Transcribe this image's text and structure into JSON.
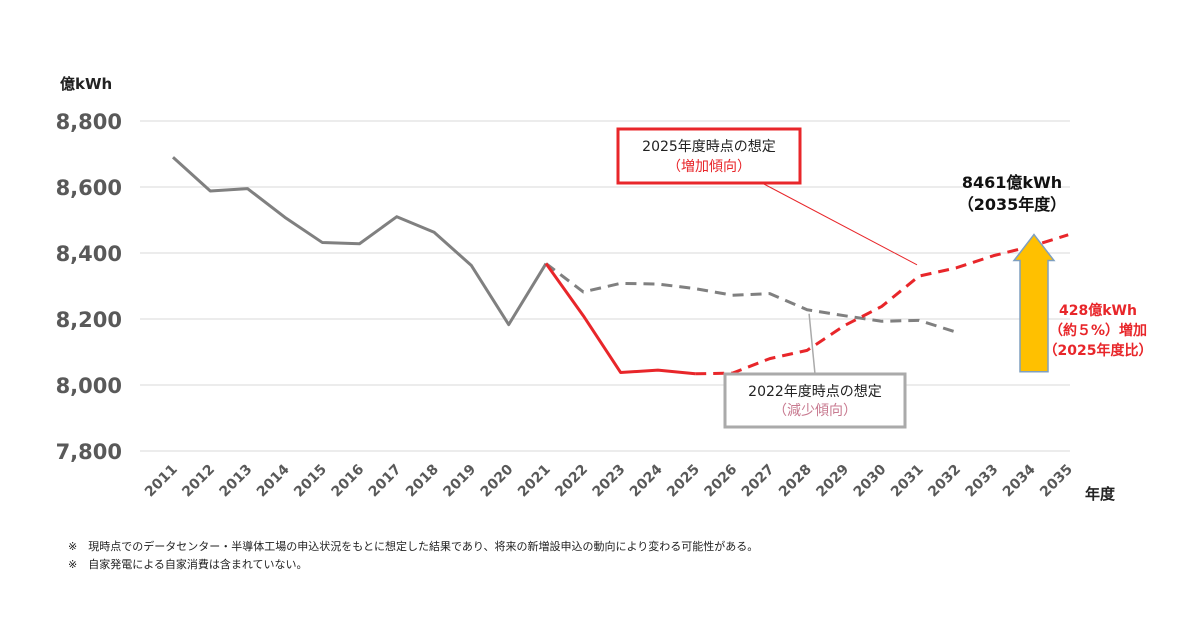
{
  "chart_data": {
    "type": "line",
    "ylabel": "億kWh",
    "xlabel": "年度",
    "ylim": [
      7800,
      8800
    ],
    "yticks": [
      7800,
      8000,
      8200,
      8400,
      8600,
      8800
    ],
    "ytick_labels": [
      "7,800",
      "8,000",
      "8,200",
      "8,400",
      "8,600",
      "8,800"
    ],
    "grid": true,
    "categories": [
      "2011",
      "2012",
      "2013",
      "2014",
      "2015",
      "2016",
      "2017",
      "2018",
      "2019",
      "2020",
      "2021",
      "2022",
      "2023",
      "2024",
      "2025",
      "2026",
      "2027",
      "2028",
      "2029",
      "2030",
      "2031",
      "2032",
      "2033",
      "2034",
      "2035"
    ],
    "series": [
      {
        "key": "actual",
        "color": "#808080",
        "dash": "solid",
        "points": [
          [
            "2011",
            8690
          ],
          [
            "2012",
            8588
          ],
          [
            "2013",
            8595
          ],
          [
            "2014",
            8508
          ],
          [
            "2015",
            8432
          ],
          [
            "2016",
            8428
          ],
          [
            "2017",
            8510
          ],
          [
            "2018",
            8463
          ],
          [
            "2019",
            8362
          ],
          [
            "2020",
            8183
          ],
          [
            "2021",
            8368
          ]
        ]
      },
      {
        "key": "forecast_2022",
        "color": "#808080",
        "dash": "dashed",
        "points": [
          [
            "2021",
            8368
          ],
          [
            "2022",
            8282
          ],
          [
            "2023",
            8308
          ],
          [
            "2024",
            8306
          ],
          [
            "2025",
            8292
          ],
          [
            "2026",
            8272
          ],
          [
            "2027",
            8277
          ],
          [
            "2028",
            8228
          ],
          [
            "2029",
            8210
          ],
          [
            "2030",
            8193
          ],
          [
            "2031",
            8196
          ],
          [
            "2032",
            8160
          ]
        ]
      },
      {
        "key": "forecast_2025_actual",
        "color": "#e8262a",
        "dash": "solid",
        "points": [
          [
            "2021",
            8368
          ],
          [
            "2022",
            8210
          ],
          [
            "2023",
            8038
          ],
          [
            "2024",
            8045
          ],
          [
            "2025",
            8034
          ]
        ]
      },
      {
        "key": "forecast_2025",
        "color": "#e8262a",
        "dash": "dashed",
        "points": [
          [
            "2025",
            8034
          ],
          [
            "2026",
            8036
          ],
          [
            "2027",
            8080
          ],
          [
            "2028",
            8105
          ],
          [
            "2029",
            8180
          ],
          [
            "2030",
            8238
          ],
          [
            "2031",
            8330
          ],
          [
            "2032",
            8355
          ],
          [
            "2033",
            8392
          ],
          [
            "2034",
            8420
          ],
          [
            "2035",
            8455
          ]
        ]
      }
    ],
    "annotations": {
      "box_2025": {
        "title": "2025年度時点の想定",
        "subtitle": "（増加傾向）",
        "border_color": "#e8262a",
        "target": [
          "2031",
          8340
        ]
      },
      "box_2022": {
        "title": "2022年度時点の想定",
        "subtitle": "（減少傾向）",
        "border_color": "#aaaaaa",
        "target": [
          "2028",
          8225
        ]
      },
      "total": {
        "line1": "8461億kWh",
        "line2": "（2035年度）"
      },
      "increase": {
        "line1": "428億kWh",
        "line2": "（約５%）増加",
        "line3": "（2025年度比）",
        "arrow_color": "#ffc000",
        "arrow_border": "#7f9fbf",
        "from": 8034,
        "to": 8462
      }
    }
  },
  "notes": [
    "※　現時点でのデータセンター・半導体工場の申込状況をもとに想定した結果であり、将来の新増設申込の動向により変わる可能性がある。",
    "※　自家発電による自家消費は含まれていない。"
  ]
}
